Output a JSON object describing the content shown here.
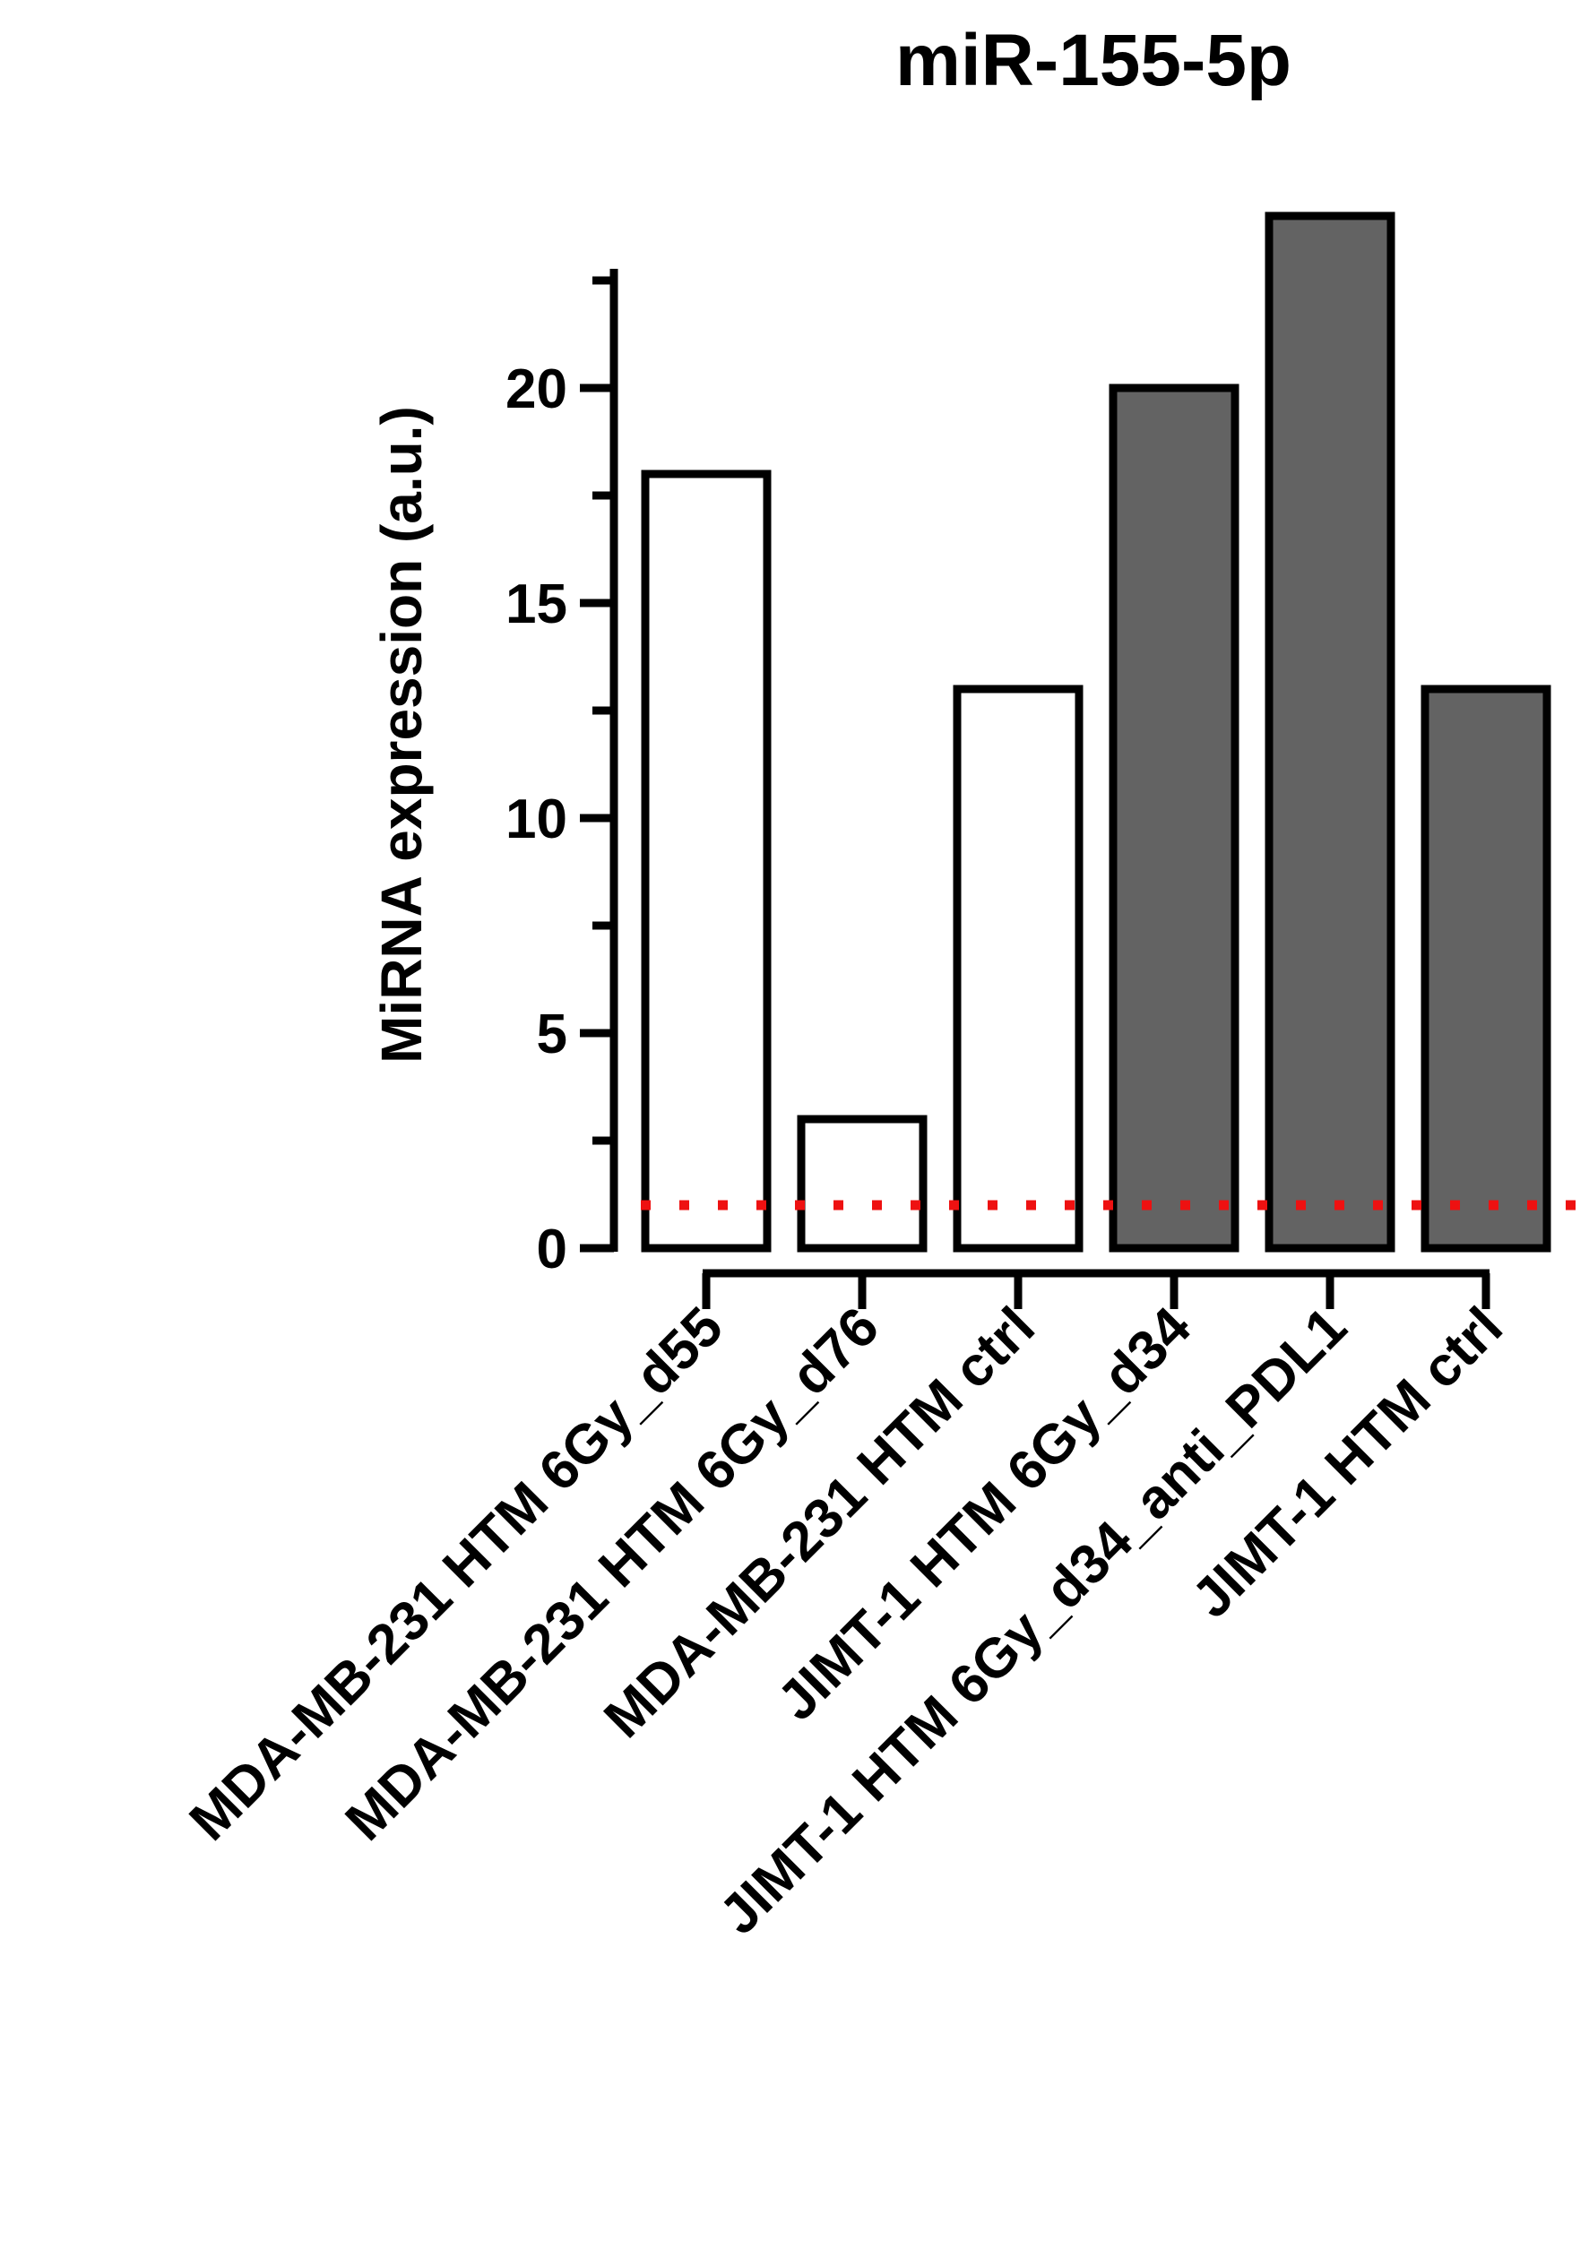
{
  "chart_data": {
    "type": "bar",
    "title": "miR-155-5p",
    "ylabel": "MiRNA expression (a.u.)",
    "xlabel": "",
    "ylim": [
      0,
      23
    ],
    "yticks": [
      0,
      5,
      10,
      15,
      20
    ],
    "reference_line": {
      "y": 1,
      "color": "#ee1111",
      "style": "dotted"
    },
    "categories": [
      "MDA-MB-231 HTM 6Gy_d55",
      "MDA-MB-231 HTM 6Gy_d76",
      "MDA-MB-231 HTM ctrl",
      "JIMT-1 HTM 6Gy_d34",
      "JIMT-1 HTM 6Gy_d34_anti_PDL1",
      "JIMT-1 HTM ctrl"
    ],
    "values": [
      18,
      3,
      13,
      20,
      24,
      13
    ],
    "bar_fills": [
      "#ffffff",
      "#ffffff",
      "#ffffff",
      "#636363",
      "#636363",
      "#636363"
    ],
    "grid": false,
    "legend": "none"
  }
}
